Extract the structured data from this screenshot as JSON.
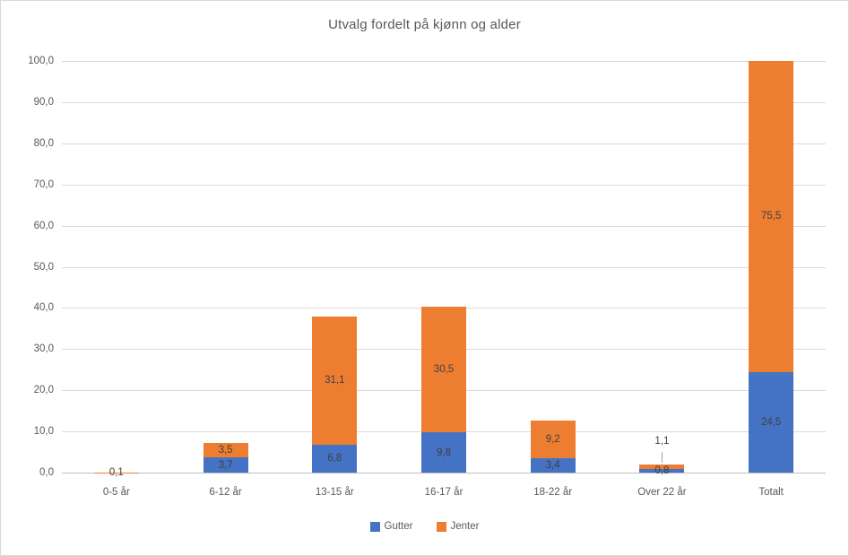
{
  "chart_data": {
    "type": "bar",
    "stacked": true,
    "title": "Utvalg fordelt på kjønn og alder",
    "categories": [
      "0-5 år",
      "6-12 år",
      "13-15 år",
      "16-17 år",
      "18-22 år",
      "Over 22 år",
      "Totalt"
    ],
    "series": [
      {
        "name": "Gutter",
        "color": "#4472C4",
        "values": [
          0.0,
          3.7,
          6.8,
          9.8,
          3.4,
          0.8,
          24.5
        ],
        "labels": [
          "",
          "3,7",
          "6,8",
          "9,8",
          "3,4",
          "0,8",
          "24,5"
        ]
      },
      {
        "name": "Jenter",
        "color": "#ED7D31",
        "values": [
          0.1,
          3.5,
          31.1,
          30.5,
          9.2,
          1.1,
          75.5
        ],
        "labels": [
          "0,1",
          "3,5",
          "31,1",
          "30,5",
          "9,2",
          "1,1",
          "75,5"
        ]
      }
    ],
    "ylim": [
      0,
      100
    ],
    "ytick_step": 10,
    "ytick_labels": [
      "0,0",
      "10,0",
      "20,0",
      "30,0",
      "40,0",
      "50,0",
      "60,0",
      "70,0",
      "80,0",
      "90,0",
      "100,0"
    ],
    "grid": true,
    "legend_position": "bottom",
    "decimal_separator": ","
  },
  "colors": {
    "gutter": "#4472C4",
    "jenter": "#ED7D31",
    "gridline": "#D9D9D9",
    "axis_line": "#BFBFBF",
    "axis_text": "#595959",
    "label_text": "#404040",
    "leader_line": "#A6A6A6",
    "frame_border": "#D9D9D9"
  }
}
